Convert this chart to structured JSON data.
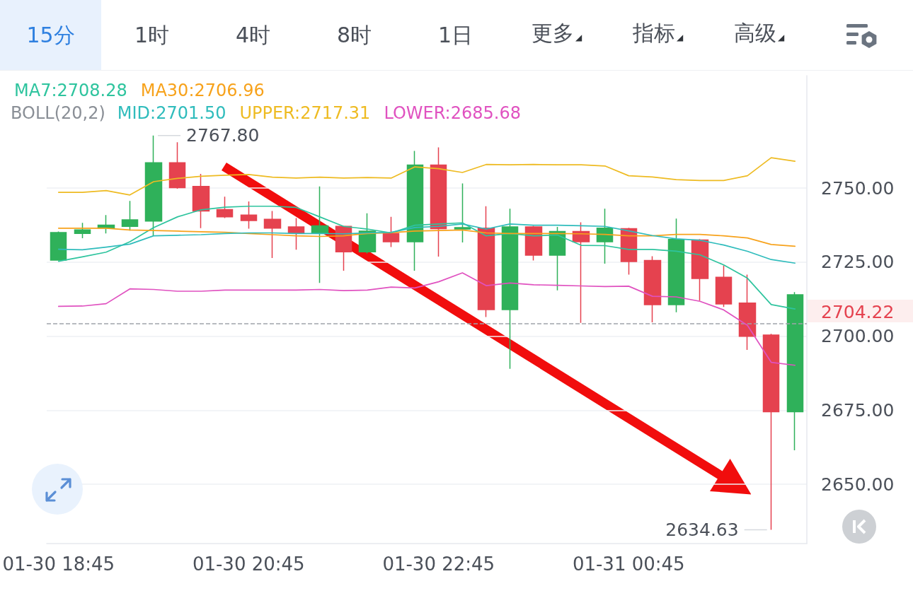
{
  "chart_data": {
    "type": "candlestick",
    "categories": [
      "01-30 18:45",
      null,
      null,
      null,
      null,
      null,
      null,
      null,
      "01-30 20:45",
      null,
      null,
      null,
      null,
      null,
      null,
      null,
      "01-30 22:45",
      null,
      null,
      null,
      null,
      null,
      null,
      null,
      "01-31 00:45",
      null,
      null,
      null,
      null,
      null,
      null,
      null
    ],
    "ohlc": [
      [
        2725.7,
        2735.4,
        2725.7,
        2735.0
      ],
      [
        2734.7,
        2738.3,
        2733.1,
        2735.9
      ],
      [
        2736.5,
        2740.9,
        2734.7,
        2737.5
      ],
      [
        2737.1,
        2745.7,
        2735.7,
        2739.3
      ],
      [
        2738.9,
        2767.8,
        2733.9,
        2758.6
      ],
      [
        2758.6,
        2765.5,
        2749.8,
        2750.2
      ],
      [
        2750.6,
        2754.8,
        2736.5,
        2742.3
      ],
      [
        2742.8,
        2747.1,
        2739.9,
        2740.3
      ],
      [
        2740.9,
        2745.5,
        2736.3,
        2739.1
      ],
      [
        2739.5,
        2742.3,
        2726.4,
        2736.5
      ],
      [
        2736.9,
        2739.9,
        2729.2,
        2734.9
      ],
      [
        2734.7,
        2750.6,
        2718.0,
        2737.3
      ],
      [
        2737.1,
        2737.3,
        2722.1,
        2728.5
      ],
      [
        2728.5,
        2741.5,
        2728.0,
        2735.5
      ],
      [
        2734.7,
        2740.3,
        2730.1,
        2731.9
      ],
      [
        2731.9,
        2762.6,
        2722.1,
        2757.8
      ],
      [
        2757.8,
        2763.8,
        2726.9,
        2736.3
      ],
      [
        2736.2,
        2751.6,
        2731.7,
        2736.7
      ],
      [
        2736.5,
        2743.9,
        2706.5,
        2709.0
      ],
      [
        2709.0,
        2743.1,
        2689.0,
        2736.9
      ],
      [
        2736.9,
        2737.3,
        2725.6,
        2727.4
      ],
      [
        2727.4,
        2736.9,
        2715.5,
        2735.4
      ],
      [
        2735.4,
        2738.5,
        2704.5,
        2731.9
      ],
      [
        2731.9,
        2743.1,
        2724.5,
        2736.5
      ],
      [
        2736.3,
        2736.6,
        2720.8,
        2725.2
      ],
      [
        2725.6,
        2727.0,
        2704.7,
        2710.7
      ],
      [
        2710.7,
        2739.7,
        2708.1,
        2732.7
      ],
      [
        2732.5,
        2732.8,
        2712.0,
        2719.5
      ],
      [
        2719.9,
        2723.9,
        2709.9,
        2710.9
      ],
      [
        2711.2,
        2720.8,
        2695.4,
        2700.0
      ],
      [
        2700.4,
        2700.8,
        2634.63,
        2674.5
      ],
      [
        2674.5,
        2714.9,
        2661.5,
        2714.0
      ]
    ],
    "colors": [
      "#2fb15a",
      "#2fb15a",
      "#2fb15a",
      "#2fb15a",
      "#2fb15a",
      "#e5424f",
      "#e5424f",
      "#e5424f",
      "#e5424f",
      "#e5424f",
      "#e5424f",
      "#2fb15a",
      "#e5424f",
      "#2fb15a",
      "#e5424f",
      "#2fb15a",
      "#e5424f",
      "#2fb15a",
      "#e5424f",
      "#2fb15a",
      "#e5424f",
      "#2fb15a",
      "#e5424f",
      "#2fb15a",
      "#e5424f",
      "#e5424f",
      "#2fb15a",
      "#e5424f",
      "#e5424f",
      "#e5424f",
      "#e5424f",
      "#2fb15a"
    ],
    "value_labels": [
      null,
      null,
      null,
      null,
      "2767.80",
      null,
      null,
      null,
      null,
      null,
      null,
      null,
      null,
      null,
      null,
      null,
      null,
      null,
      null,
      null,
      null,
      null,
      null,
      null,
      null,
      null,
      null,
      null,
      null,
      null,
      "2634.63",
      null
    ],
    "series": [
      {
        "name": "MA7:2708.28",
        "type": "line",
        "color": "#2ec49e",
        "values": [
          2725.3,
          2726.8,
          2728.4,
          2731.9,
          2736.7,
          2740.3,
          2742.7,
          2743.6,
          2743.9,
          2743.9,
          2743.5,
          2740.3,
          2737.1,
          2736.2,
          2734.9,
          2737.5,
          2737.9,
          2738.3,
          2733.9,
          2734.7,
          2733.9,
          2734.2,
          2730.7,
          2730.6,
          2729.3,
          2729.3,
          2728.7,
          2727.5,
          2724.1,
          2719.6,
          2710.7,
          2709.2
        ]
      },
      {
        "name": "MA30:2706.96",
        "type": "line",
        "color": "#f7a21b",
        "values": [
          2736.5,
          2736.5,
          2736.5,
          2735.9,
          2735.7,
          2735.5,
          2735.3,
          2735.1,
          2734.7,
          2734.3,
          2733.9,
          2733.7,
          2733.9,
          2734.7,
          2735.0,
          2735.5,
          2735.7,
          2735.9,
          2734.9,
          2734.7,
          2734.7,
          2734.7,
          2734.6,
          2734.4,
          2733.9,
          2733.9,
          2734.4,
          2734.4,
          2733.9,
          2733.2,
          2731.0,
          2730.4
        ]
      },
      {
        "name": "MID:2701.50",
        "type": "line",
        "color": "#2fbcbc",
        "values": [
          2729.4,
          2729.2,
          2730.1,
          2731.1,
          2733.9,
          2734.1,
          2734.3,
          2734.7,
          2734.9,
          2734.9,
          2734.7,
          2734.7,
          2734.6,
          2734.9,
          2735.1,
          2736.7,
          2737.1,
          2737.9,
          2736.2,
          2737.9,
          2737.5,
          2737.5,
          2737.3,
          2737.1,
          2735.6,
          2734.0,
          2732.9,
          2732.4,
          2730.8,
          2728.7,
          2725.9,
          2724.7
        ]
      },
      {
        "name": "UPPER:2717.31",
        "type": "line",
        "color": "#eebb22",
        "values": [
          2748.6,
          2748.6,
          2749.2,
          2747.7,
          2752.2,
          2753.3,
          2754.0,
          2754.4,
          2754.6,
          2753.7,
          2753.4,
          2753.7,
          2753.4,
          2753.6,
          2753.4,
          2757.2,
          2756.6,
          2755.3,
          2758.0,
          2757.9,
          2758.0,
          2757.9,
          2757.9,
          2757.5,
          2754.2,
          2753.8,
          2752.9,
          2752.6,
          2752.6,
          2754.2,
          2760.3,
          2759.1
        ]
      },
      {
        "name": "LOWER:2685.68",
        "type": "line",
        "color": "#e052c0",
        "values": [
          2710.1,
          2710.2,
          2711.0,
          2716.0,
          2715.8,
          2715.2,
          2715.2,
          2715.6,
          2715.6,
          2715.6,
          2715.6,
          2715.8,
          2715.4,
          2715.6,
          2716.6,
          2716.3,
          2718.4,
          2721.4,
          2717.1,
          2718.0,
          2717.4,
          2717.2,
          2717.0,
          2716.8,
          2716.9,
          2713.5,
          2713.3,
          2711.8,
          2708.9,
          2703.7,
          2691.2,
          2690.2
        ]
      }
    ],
    "legend_title": "BOLL(20,2)",
    "legend": "top left",
    "ylim": [
      2630,
      2788
    ],
    "yticks": [
      {
        "value": 2650,
        "label": "2650.00"
      },
      {
        "value": 2675,
        "label": "2675.00"
      },
      {
        "value": 2700,
        "label": "2700.00"
      },
      {
        "value": 2725,
        "label": "2725.00"
      },
      {
        "value": 2750,
        "label": "2750.00"
      }
    ],
    "grid": "y",
    "marker": "none",
    "line_style": "solid",
    "ref_lines": [
      {
        "axis": "y",
        "value": 2704.22,
        "label": "2704.22",
        "color": "#a0a4aa",
        "line_style": "dashed"
      }
    ],
    "annotations": [
      "15分",
      "1时",
      "4时",
      "8时",
      "1日",
      "更多◢",
      "指标◢",
      "高级◢"
    ]
  }
}
